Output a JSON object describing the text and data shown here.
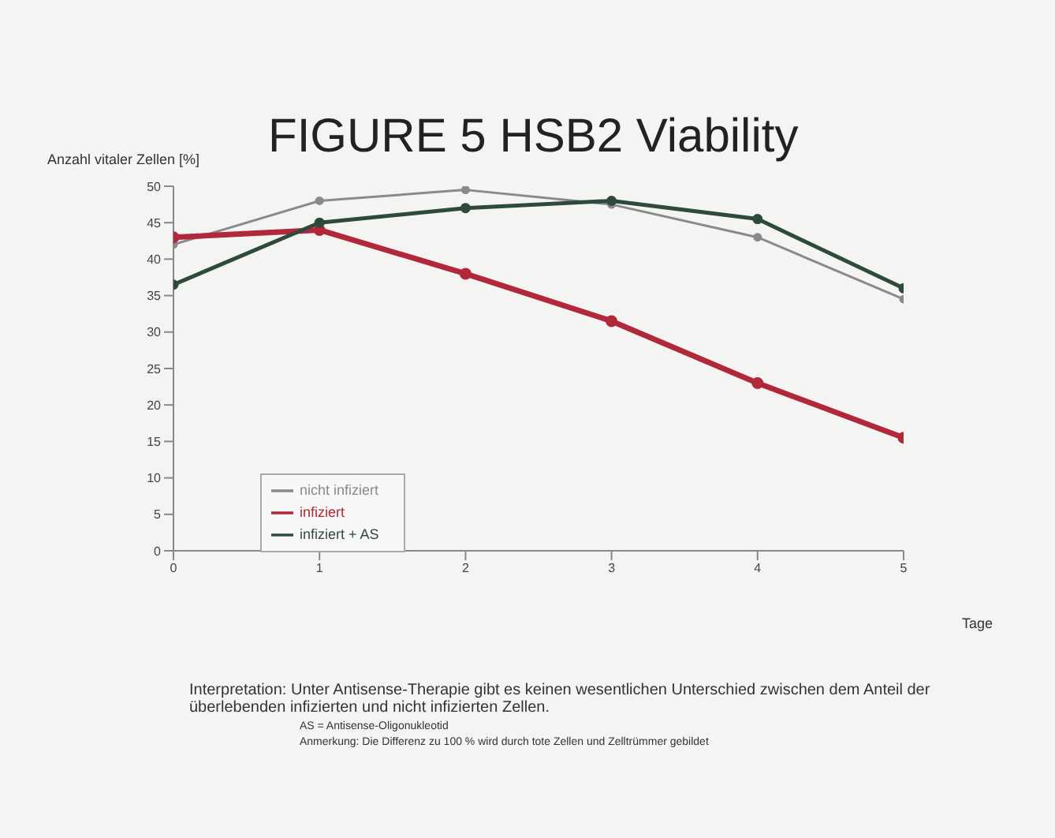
{
  "chart_data": {
    "type": "line",
    "title": "FIGURE 5  HSB2 Viability",
    "ylabel": "Anzahl vitaler Zellen [%]",
    "xlabel": "Tage",
    "x": [
      0,
      1,
      2,
      3,
      4,
      5
    ],
    "xlim": [
      0,
      5
    ],
    "xticks": [
      0,
      1,
      2,
      3,
      4,
      5
    ],
    "ylim": [
      0,
      50
    ],
    "yticks": [
      0,
      5,
      10,
      15,
      20,
      25,
      30,
      35,
      40,
      45,
      50
    ],
    "series": [
      {
        "name": "nicht infiziert",
        "color": "#8a8a8a",
        "values": [
          42,
          48,
          49.5,
          47.5,
          43,
          34.5
        ]
      },
      {
        "name": "infiziert",
        "color": "#b0283a",
        "values": [
          43,
          44,
          38,
          31.5,
          23,
          15.5
        ]
      },
      {
        "name": "infiziert + AS",
        "color": "#2e4a3c",
        "values": [
          36.5,
          45,
          47,
          48,
          45.5,
          36
        ]
      }
    ],
    "legend": "bottom left",
    "marker": "circle",
    "line_style": "solid",
    "grid": false,
    "annotations": [
      "Interpretation: Unter Antisense-Therapie gibt es keinen wesentlichen Unterschied zwischen dem Anteil der überlebenden infizierten und nicht infizierten Zellen.",
      "AS = Antisense-Oligonukleotid",
      "Anmerkung: Die Differenz zu 100 % wird durch tote Zellen und Zelltrümmer gebildet"
    ]
  }
}
